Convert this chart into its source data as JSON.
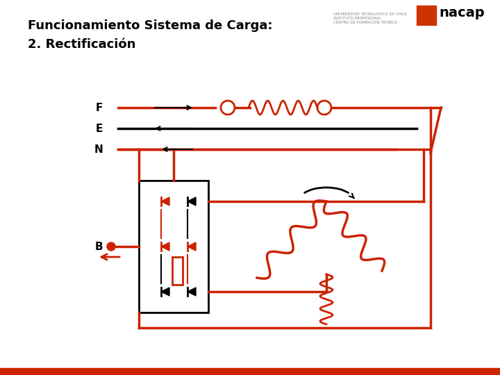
{
  "title1": "Funcionamiento Sistema de Carga:",
  "title2": "2. Rectificación",
  "bg_color": "#FFFFFF",
  "red_color": "#CC2200",
  "black_color": "#000000",
  "orange_red": "#DD3300",
  "label_F": "F",
  "label_E": "E",
  "label_N": "N",
  "label_B": "B",
  "bottom_bar_color": "#CC2200",
  "nacap_red": "#CC3300"
}
